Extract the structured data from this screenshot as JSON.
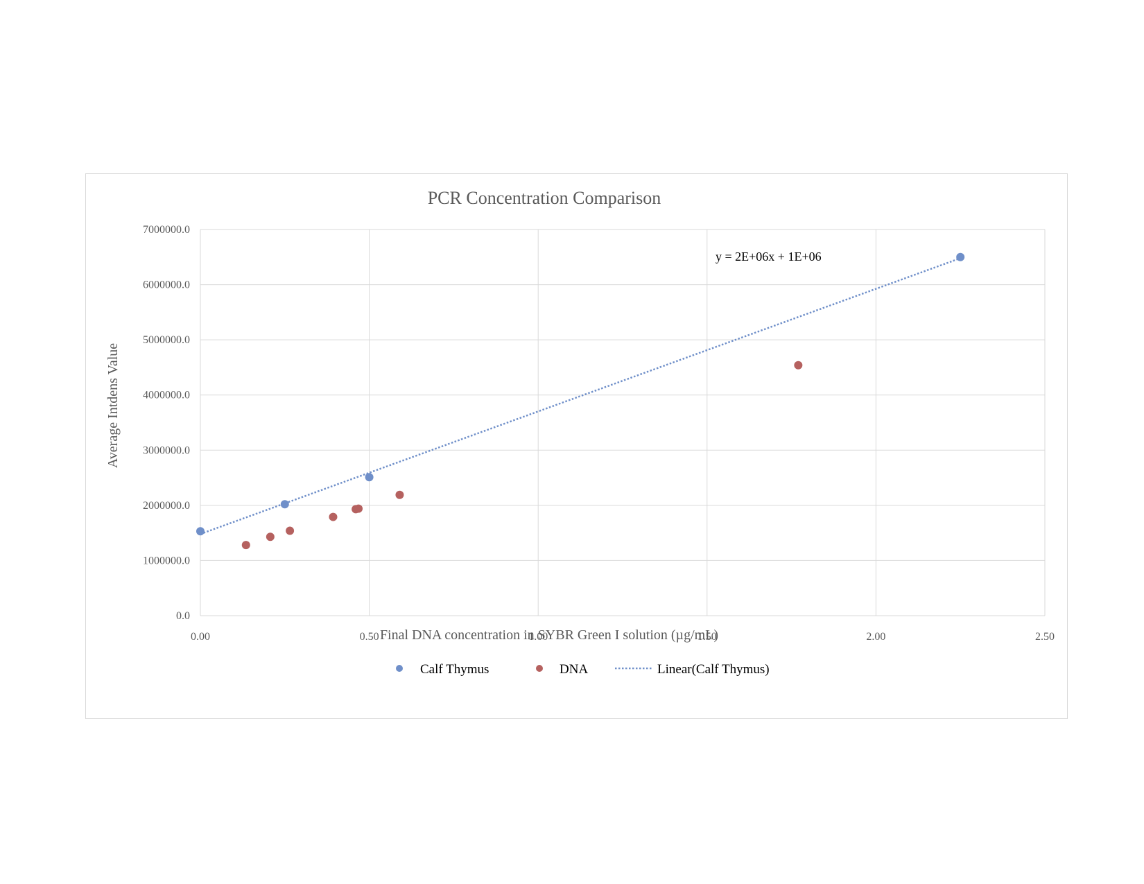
{
  "colors": {
    "calf_thymus": "#6f8fc9",
    "dna": "#b5615f",
    "grid": "#d9d9d9",
    "text": "#595959"
  },
  "chart_data": {
    "type": "scatter",
    "title": "PCR Concentration Comparison",
    "xlabel": "Final DNA concentration in SYBR Green I solution (µg/mL)",
    "ylabel": "Average Intdens Value",
    "xlim": [
      0,
      2.5
    ],
    "ylim": [
      0,
      7000000
    ],
    "x_ticks": [
      "0.00",
      "0.50",
      "1.00",
      "1.50",
      "2.00",
      "2.50"
    ],
    "y_ticks": [
      "0.0",
      "1000000.0",
      "2000000.0",
      "3000000.0",
      "4000000.0",
      "5000000.0",
      "6000000.0",
      "7000000.0"
    ],
    "grid": true,
    "legend_position": "bottom",
    "series": [
      {
        "name": "Calf Thymus",
        "color": "#6f8fc9",
        "x": [
          0.0,
          0.25,
          0.5,
          2.25
        ],
        "y": [
          1530000,
          2020000,
          2510000,
          6500000
        ]
      },
      {
        "name": "DNA",
        "color": "#b5615f",
        "x": [
          0.135,
          0.207,
          0.265,
          0.393,
          0.46,
          0.468,
          0.59,
          1.77
        ],
        "y": [
          1280000,
          1430000,
          1540000,
          1790000,
          1930000,
          1940000,
          2190000,
          4540000
        ]
      }
    ],
    "trendline": {
      "name": "Linear(Calf Thymus)",
      "color": "#6f8fc9",
      "x": [
        0.0,
        2.25
      ],
      "y": [
        1480000,
        6480000
      ],
      "equation": "y = 2E+06x + 1E+06"
    }
  }
}
